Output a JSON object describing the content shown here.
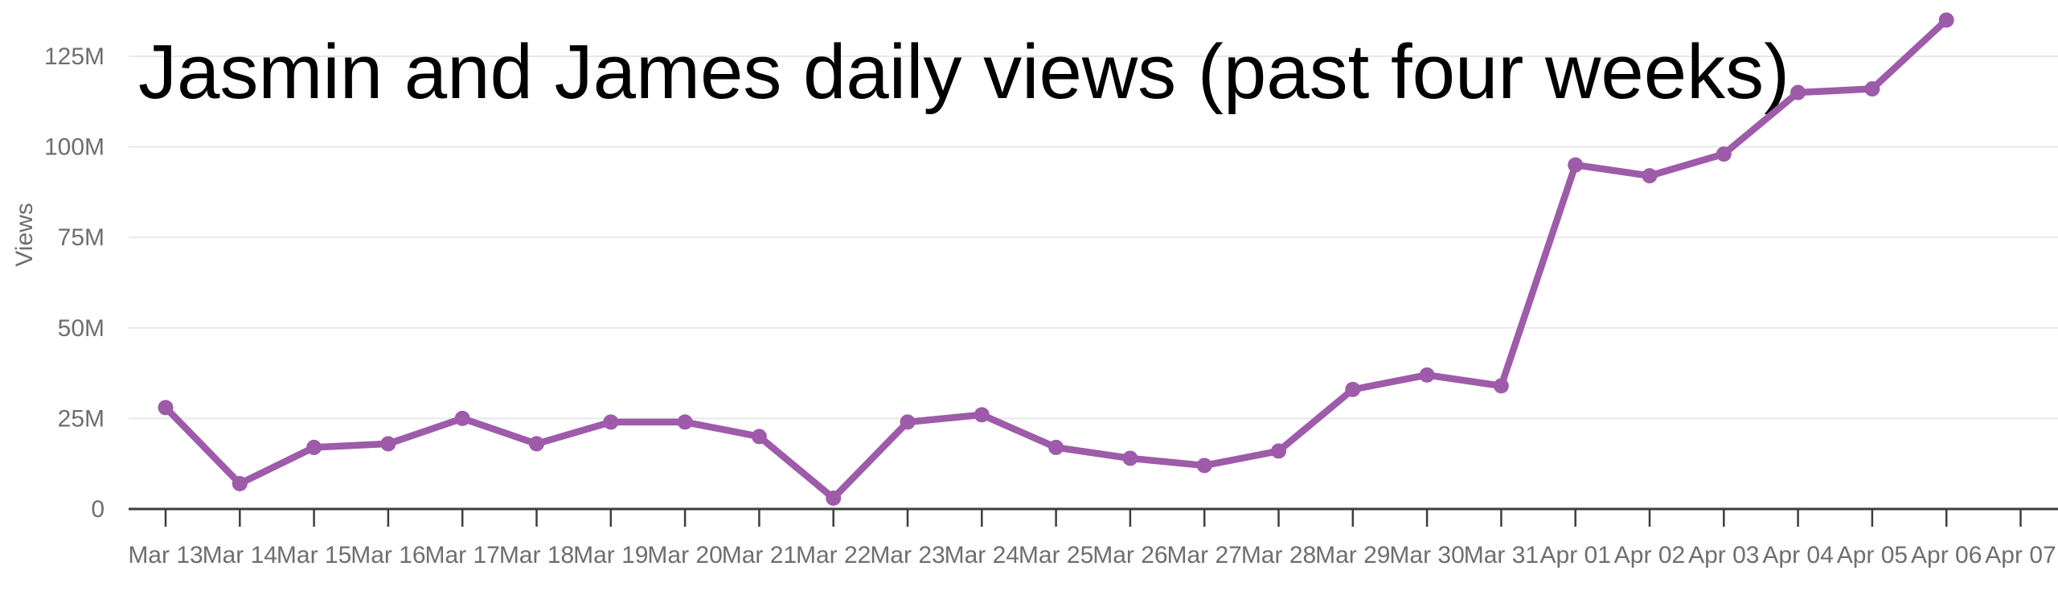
{
  "chart_data": {
    "type": "line",
    "title": "Jasmin and James daily views (past four weeks)",
    "xlabel": "",
    "ylabel": "Views",
    "categories": [
      "Mar 13",
      "Mar 14",
      "Mar 15",
      "Mar 16",
      "Mar 17",
      "Mar 18",
      "Mar 19",
      "Mar 20",
      "Mar 21",
      "Mar 22",
      "Mar 23",
      "Mar 24",
      "Mar 25",
      "Mar 26",
      "Mar 27",
      "Mar 28",
      "Mar 29",
      "Mar 30",
      "Mar 31",
      "Apr 01",
      "Apr 02",
      "Apr 03",
      "Apr 04",
      "Apr 05",
      "Apr 06",
      "Apr 07"
    ],
    "series": [
      {
        "color": "#9d5ba9",
        "values_millions": [
          28,
          7,
          17,
          18,
          25,
          18,
          24,
          24,
          20,
          3,
          24,
          26,
          17,
          14,
          12,
          16,
          33,
          37,
          34,
          95,
          92,
          98,
          115,
          116,
          135,
          null
        ]
      }
    ],
    "y_ticks": [
      {
        "value": 0,
        "label": "0"
      },
      {
        "value": 25,
        "label": "25M"
      },
      {
        "value": 50,
        "label": "50M"
      },
      {
        "value": 75,
        "label": "75M"
      },
      {
        "value": 100,
        "label": "100M"
      },
      {
        "value": 125,
        "label": "125M"
      }
    ],
    "ylim": [
      0,
      140
    ],
    "grid": "horizontal",
    "legend": "none"
  },
  "style": {
    "line_color": "#9d5ba9",
    "grid_color": "#e8e8e8",
    "axis_color": "#3d3d3d",
    "tick_label_color": "#6e6e6e",
    "title_color": "#000000",
    "background": "#ffffff"
  }
}
